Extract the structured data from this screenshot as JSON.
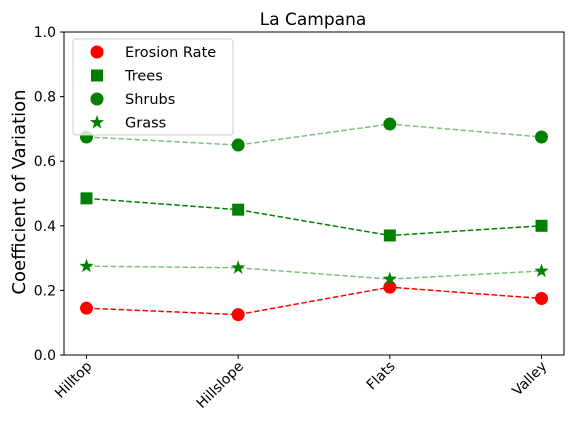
{
  "chart_data": {
    "type": "line",
    "title": "La Campana",
    "xlabel": "",
    "ylabel": "Coefficient of Variation",
    "categories": [
      "Hilltop",
      "Hillslope",
      "Flats",
      "Valley"
    ],
    "ylim": [
      0.0,
      1.0
    ],
    "yticks": [
      "0.0",
      "0.2",
      "0.4",
      "0.6",
      "0.8",
      "1.0"
    ],
    "grid": false,
    "legend_position": "top-left",
    "series": [
      {
        "name": "Erosion Rate",
        "values": [
          0.145,
          0.125,
          0.21,
          0.175
        ],
        "color": "#ff0000",
        "marker": "circle",
        "line_opacity": 1.0
      },
      {
        "name": "Trees",
        "values": [
          0.485,
          0.45,
          0.37,
          0.4
        ],
        "color": "#008000",
        "marker": "square",
        "line_opacity": 1.0
      },
      {
        "name": "Shrubs",
        "values": [
          0.675,
          0.65,
          0.715,
          0.675
        ],
        "color": "#008000",
        "marker": "circle",
        "line_opacity": 0.5
      },
      {
        "name": "Grass",
        "values": [
          0.275,
          0.27,
          0.235,
          0.26
        ],
        "color": "#008000",
        "marker": "star",
        "line_opacity": 0.5
      }
    ]
  }
}
